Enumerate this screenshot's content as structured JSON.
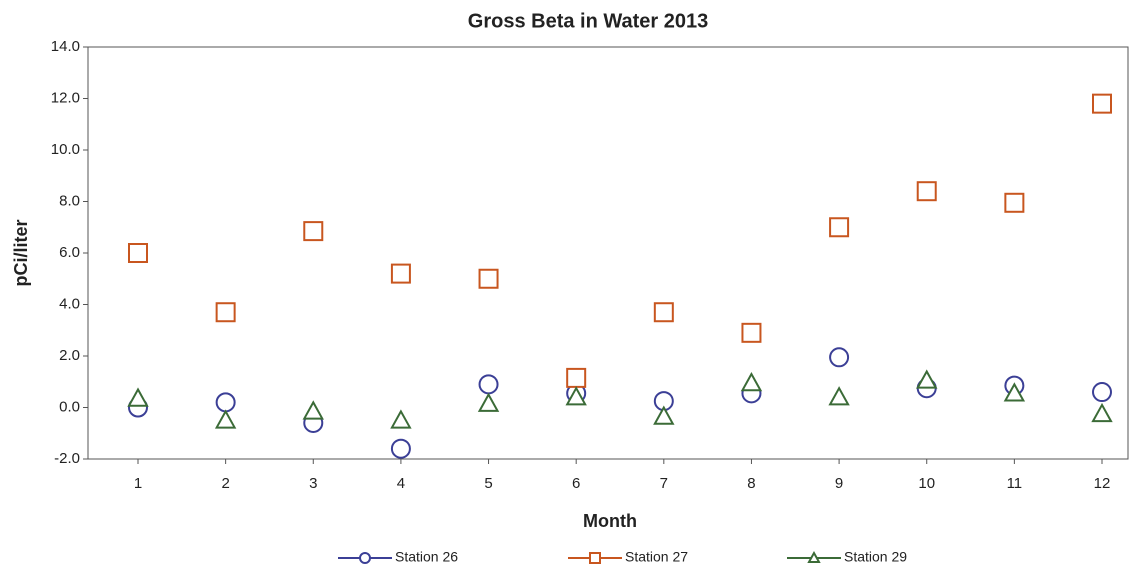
{
  "chart_data": {
    "type": "line",
    "title": "Gross Beta in Water 2013",
    "x_label": "Month",
    "y_label": "pCi/liter",
    "categories": [
      "1",
      "2",
      "3",
      "4",
      "5",
      "6",
      "7",
      "8",
      "9",
      "10",
      "11",
      "12"
    ],
    "ylim": [
      -2,
      14
    ],
    "yticks": [
      {
        "value": -2,
        "label": "-2.0"
      },
      {
        "value": 0,
        "label": "0.0"
      },
      {
        "value": 2,
        "label": "2.0"
      },
      {
        "value": 4,
        "label": "4.0"
      },
      {
        "value": 6,
        "label": "6.0"
      },
      {
        "value": 8,
        "label": "8.0"
      },
      {
        "value": 10,
        "label": "10.0"
      },
      {
        "value": 12,
        "label": "12.0"
      },
      {
        "value": 14,
        "label": "14.0"
      }
    ],
    "legend": "bottom",
    "series": [
      {
        "name": "Station 26",
        "color": "#3b3f96",
        "marker": "circle",
        "values": [
          0.0,
          0.2,
          -0.6,
          -1.6,
          0.9,
          0.55,
          0.25,
          0.55,
          1.95,
          0.75,
          0.85,
          0.6
        ]
      },
      {
        "name": "Station 27",
        "color": "#c8561f",
        "marker": "square",
        "values": [
          6.0,
          3.7,
          6.85,
          5.2,
          5.0,
          1.15,
          3.7,
          2.9,
          7.0,
          8.4,
          7.95,
          11.8
        ]
      },
      {
        "name": "Station 29",
        "color": "#3b6b37",
        "marker": "triangle",
        "values": [
          0.35,
          -0.5,
          -0.15,
          -0.5,
          0.15,
          0.4,
          -0.35,
          0.95,
          0.4,
          1.05,
          0.55,
          -0.25
        ]
      }
    ]
  }
}
